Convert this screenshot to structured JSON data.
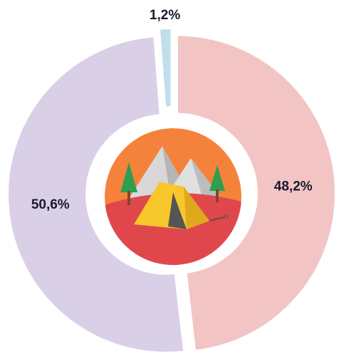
{
  "chart_data": {
    "type": "donut",
    "values": [
      48.2,
      50.6,
      1.2
    ],
    "value_labels": [
      "48,2%",
      "50,6%",
      "1,2%"
    ],
    "colors": [
      "#f2c4c4",
      "#d9cfe6",
      "#bfe0ea"
    ]
  }
}
